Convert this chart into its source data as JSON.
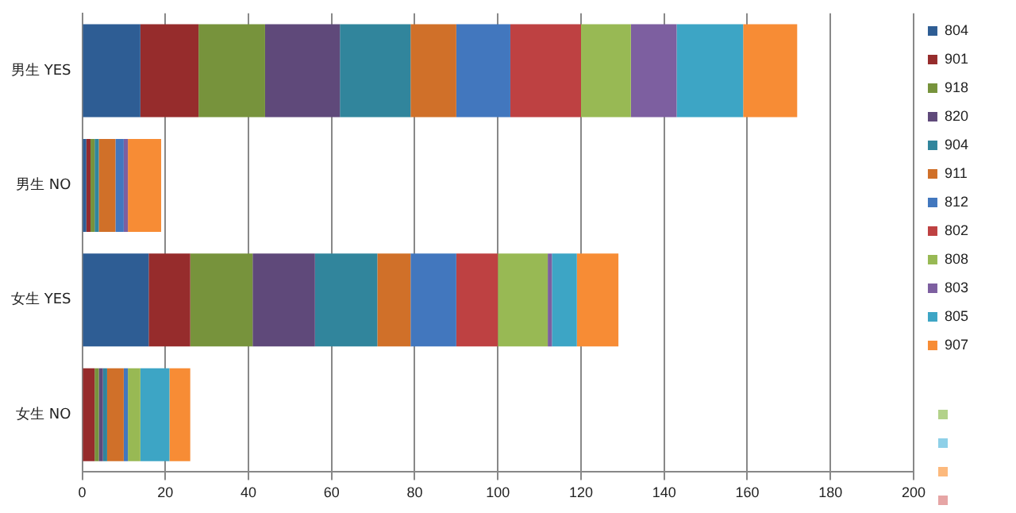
{
  "chart_data": {
    "type": "bar",
    "orientation": "horizontal",
    "stacked": true,
    "categories": [
      "男生 YES",
      "男生 NO",
      "女生 YES",
      "女生 NO"
    ],
    "series": [
      {
        "name": "804",
        "color": "#2e5d94",
        "values": [
          14,
          1,
          16,
          0
        ]
      },
      {
        "name": "901",
        "color": "#962c2c",
        "values": [
          14,
          1,
          10,
          3
        ]
      },
      {
        "name": "918",
        "color": "#77933c",
        "values": [
          16,
          1,
          15,
          1
        ]
      },
      {
        "name": "820",
        "color": "#5f497a",
        "values": [
          18,
          0,
          15,
          1
        ]
      },
      {
        "name": "904",
        "color": "#31859c",
        "values": [
          17,
          1,
          15,
          1
        ]
      },
      {
        "name": "911",
        "color": "#d07029",
        "values": [
          11,
          4,
          8,
          4
        ]
      },
      {
        "name": "812",
        "color": "#4277be",
        "values": [
          13,
          2,
          11,
          1
        ]
      },
      {
        "name": "802",
        "color": "#be4142",
        "values": [
          17,
          0,
          10,
          0
        ]
      },
      {
        "name": "808",
        "color": "#98b954",
        "values": [
          12,
          0,
          12,
          3
        ]
      },
      {
        "name": "803",
        "color": "#7d5fa0",
        "values": [
          11,
          1,
          1,
          0
        ]
      },
      {
        "name": "805",
        "color": "#3da5c5",
        "values": [
          16,
          0,
          6,
          7
        ]
      },
      {
        "name": "907",
        "color": "#f78c35",
        "values": [
          13,
          8,
          10,
          5
        ]
      }
    ],
    "xlim": [
      0,
      200
    ],
    "xticks": [
      0,
      20,
      40,
      60,
      80,
      100,
      120,
      140,
      160,
      180,
      200
    ],
    "grid": "x",
    "legend": "right"
  }
}
